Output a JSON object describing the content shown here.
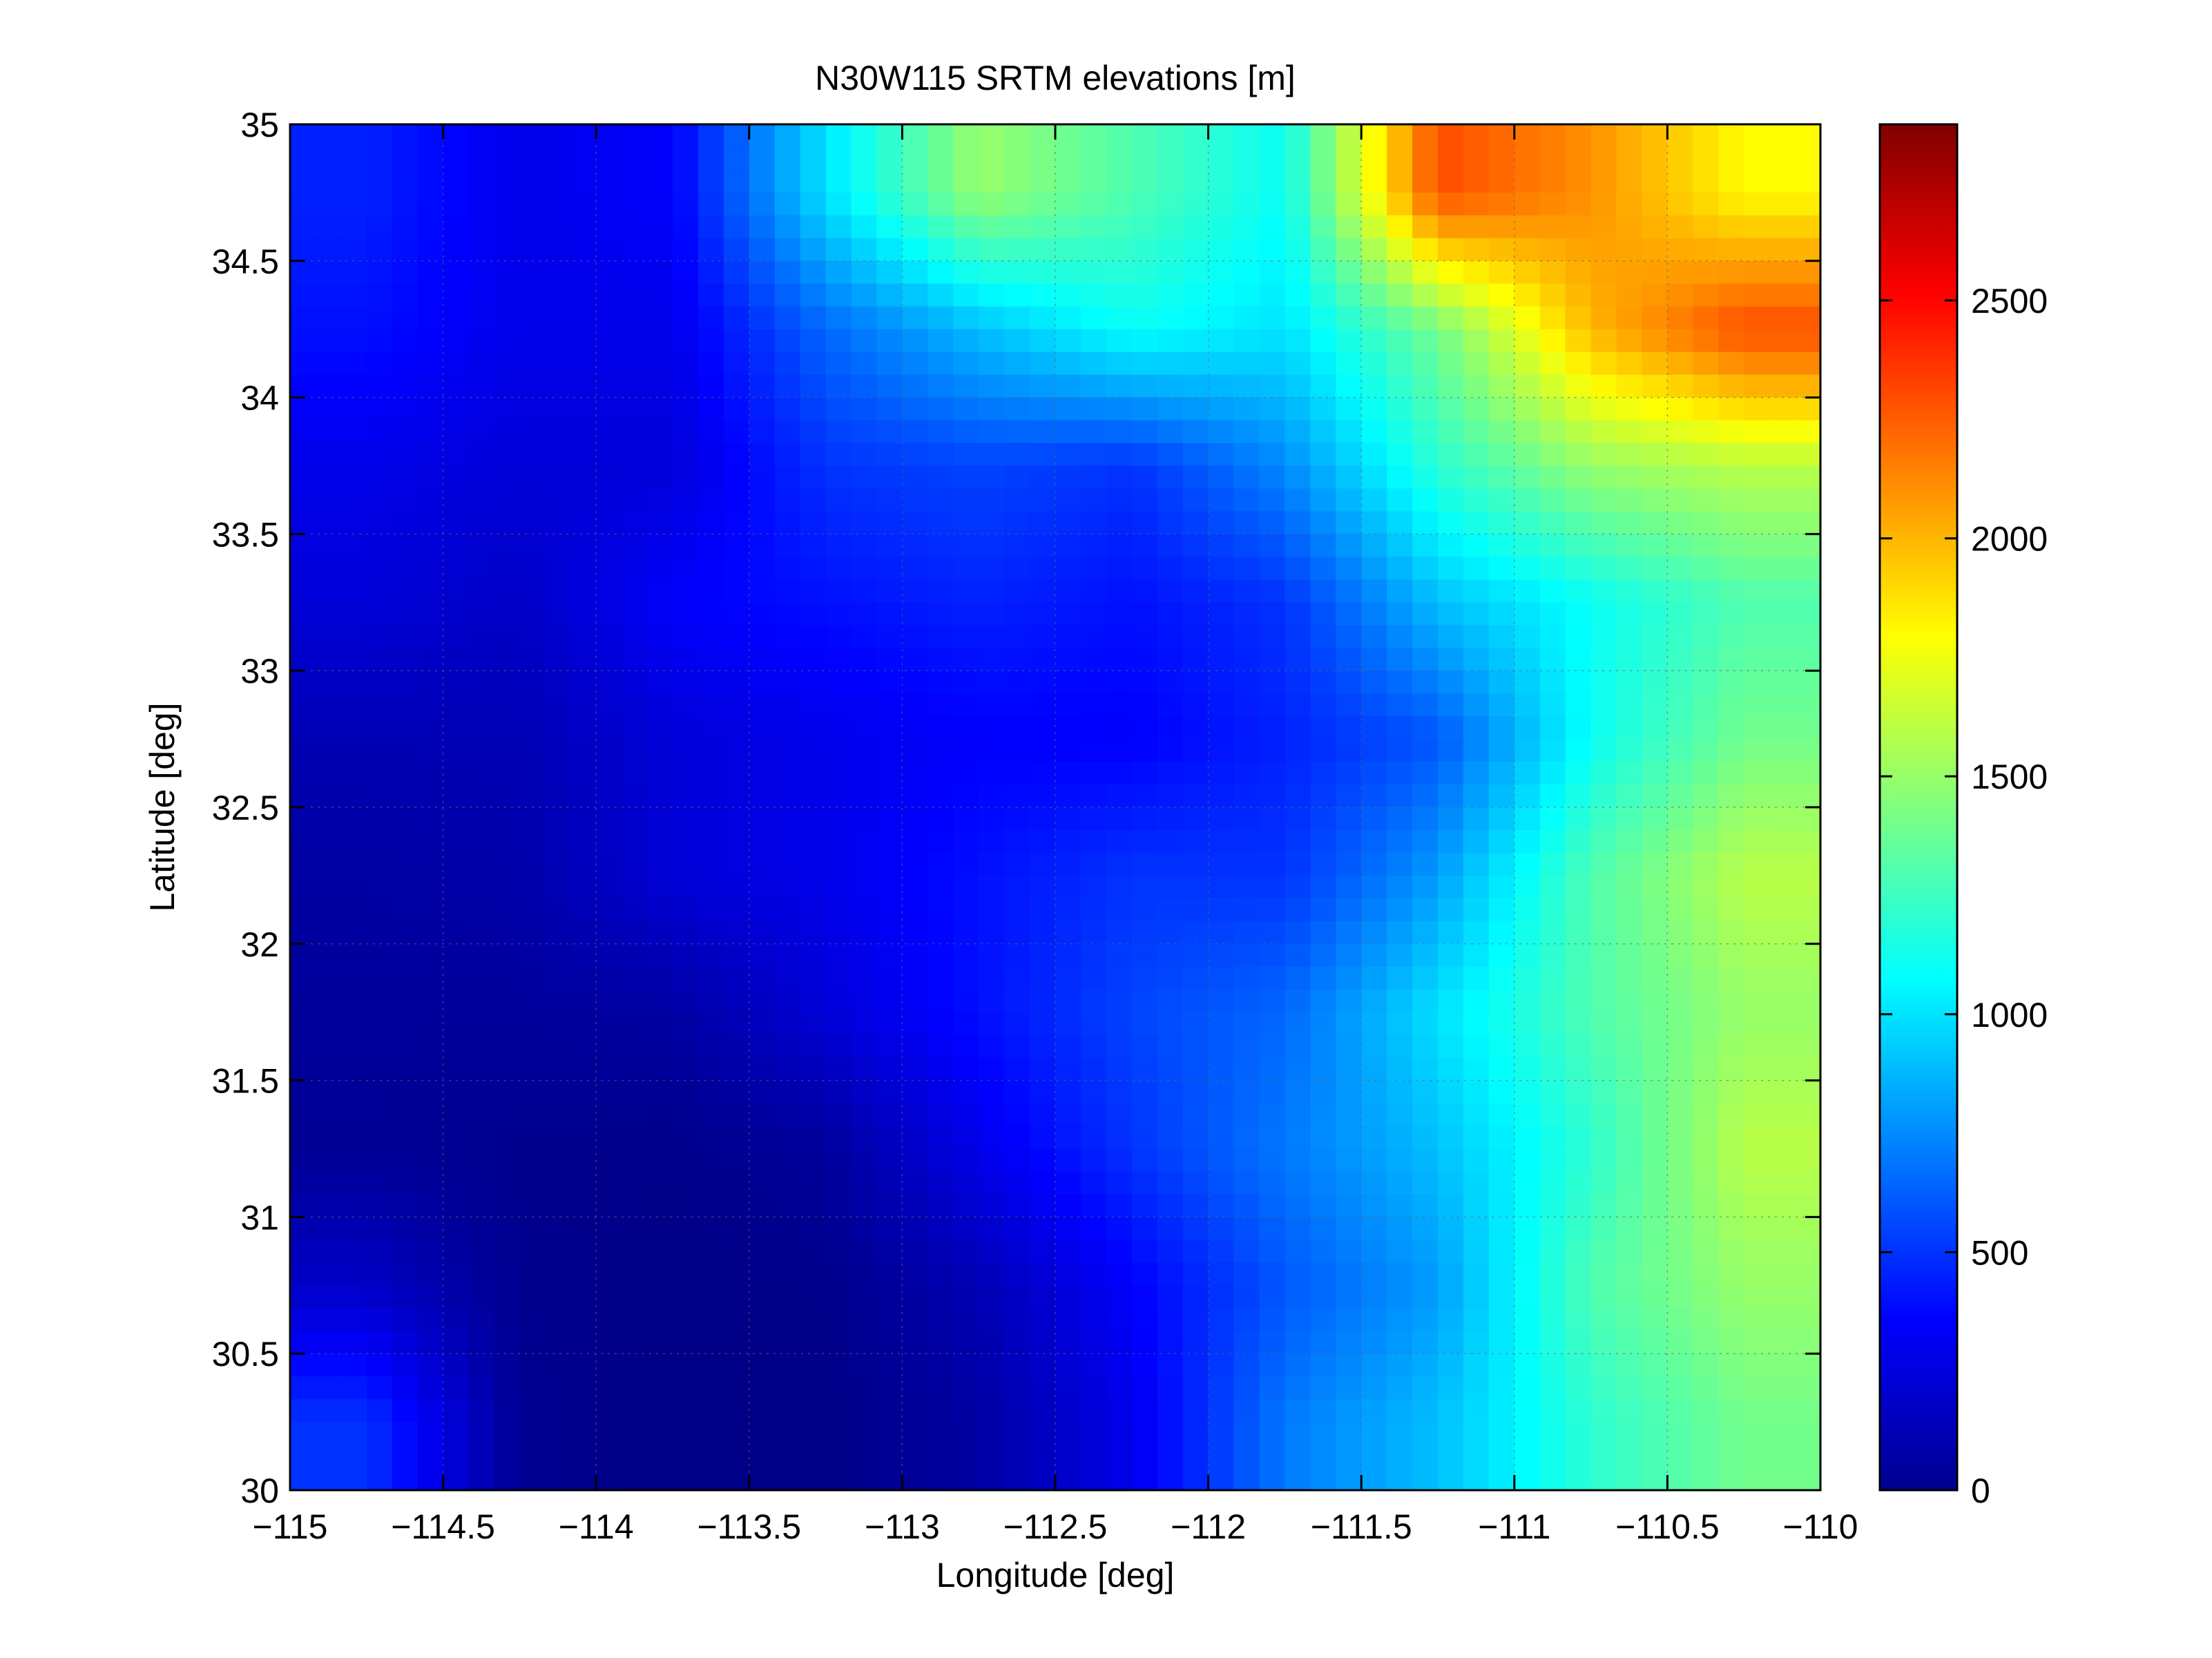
{
  "chart_data": {
    "type": "heatmap",
    "title": "N30W115 SRTM elevations [m]",
    "xlabel": "Longitude [deg]",
    "ylabel": "Latitude [deg]",
    "xlim": [
      -115,
      -110
    ],
    "ylim": [
      30,
      35
    ],
    "x_ticks": [
      -115,
      -114.5,
      -114,
      -113.5,
      -113,
      -112.5,
      -112,
      -111.5,
      -111,
      -110.5,
      -110
    ],
    "y_ticks": [
      30,
      30.5,
      31,
      31.5,
      32,
      32.5,
      33,
      33.5,
      34,
      34.5,
      35
    ],
    "x_tick_labels": [
      "−115",
      "−114.5",
      "−114",
      "−113.5",
      "−113",
      "−112.5",
      "−112",
      "−111.5",
      "−111",
      "−110.5",
      "−110"
    ],
    "y_tick_labels": [
      "30",
      "30.5",
      "31",
      "31.5",
      "32",
      "32.5",
      "33",
      "33.5",
      "34",
      "34.5",
      "35"
    ],
    "grid": true,
    "colormap": "jet",
    "colorbar": {
      "range": [
        0,
        2870
      ],
      "ticks": [
        0,
        500,
        1000,
        1500,
        2000,
        2500
      ],
      "tick_labels": [
        "0",
        "500",
        "1000",
        "1500",
        "2000",
        "2500"
      ]
    },
    "elevation_grid": {
      "lon": [
        -114.75,
        -114.25,
        -113.75,
        -113.25,
        -112.75,
        -112.25,
        -111.75,
        -111.25,
        -110.75,
        -110.25
      ],
      "lat": [
        34.75,
        34.25,
        33.75,
        33.25,
        32.75,
        32.25,
        31.75,
        31.25,
        30.75,
        30.25
      ],
      "values": [
        [
          450,
          300,
          350,
          1000,
          1500,
          1300,
          1100,
          2300,
          2100,
          1800
        ],
        [
          400,
          300,
          300,
          650,
          900,
          1100,
          1000,
          1400,
          2000,
          2300
        ],
        [
          300,
          250,
          250,
          500,
          550,
          500,
          750,
          1200,
          1500,
          1600
        ],
        [
          250,
          200,
          350,
          400,
          450,
          400,
          500,
          900,
          1100,
          1300
        ],
        [
          150,
          150,
          250,
          300,
          350,
          350,
          450,
          600,
          1100,
          1400
        ],
        [
          100,
          120,
          250,
          300,
          400,
          500,
          500,
          800,
          1300,
          1600
        ],
        [
          80,
          80,
          100,
          250,
          400,
          550,
          650,
          1000,
          1300,
          1500
        ],
        [
          60,
          40,
          30,
          80,
          300,
          500,
          700,
          900,
          1200,
          1600
        ],
        [
          200,
          40,
          20,
          30,
          150,
          350,
          600,
          800,
          1300,
          1500
        ],
        [
          500,
          50,
          20,
          20,
          100,
          300,
          700,
          900,
          1200,
          1400
        ]
      ]
    }
  }
}
